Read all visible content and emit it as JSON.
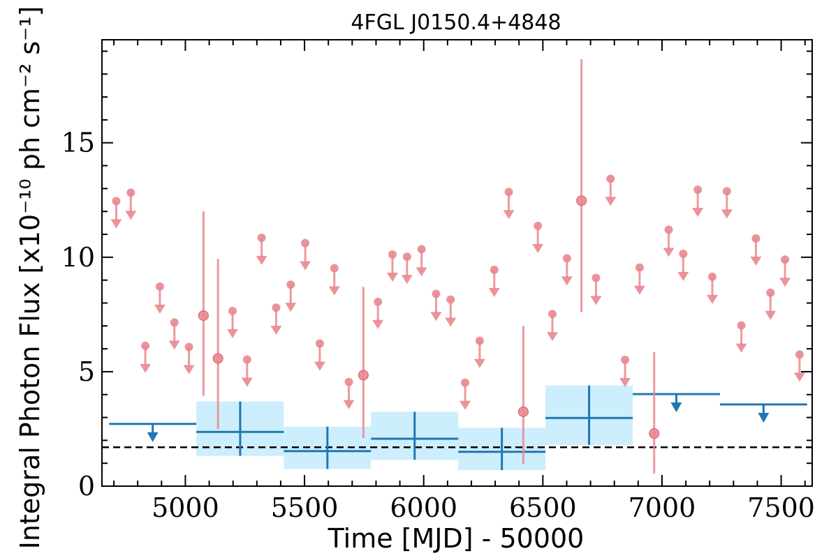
{
  "chart_data": {
    "type": "scatter",
    "title": "4FGL J0150.4+4848",
    "xlabel": "Time [MJD] - 50000",
    "ylabel": "Integral Photon Flux [x10⁻¹⁰ ph cm⁻² s⁻¹]",
    "xlim": [
      4650,
      7630
    ],
    "ylim": [
      0,
      19.5
    ],
    "xticks": [
      5000,
      5500,
      6000,
      6500,
      7000,
      7500
    ],
    "xtick_labels": [
      "5000",
      "5500",
      "6000",
      "6500",
      "7000",
      "7500"
    ],
    "yticks": [
      0,
      5,
      10,
      15
    ],
    "ytick_labels": [
      "0",
      "5",
      "10",
      "15"
    ],
    "grid": false,
    "legend": "none",
    "colors": {
      "short_bins": "#e8888e",
      "long_bins": "#1f77b4",
      "long_band": "#cdeefc",
      "reference_line": "#000000"
    },
    "reference_line": {
      "y": 1.7,
      "style": "dashed"
    },
    "series": [
      {
        "role": "short-bins",
        "detections": [
          {
            "x": 5076,
            "y": 7.45,
            "ylow": 3.95,
            "yhigh": 12.0
          },
          {
            "x": 5137,
            "y": 5.58,
            "ylow": 2.5,
            "yhigh": 9.92
          },
          {
            "x": 5747,
            "y": 4.85,
            "ylow": 2.1,
            "yhigh": 8.7
          },
          {
            "x": 6418,
            "y": 3.25,
            "ylow": 0.98,
            "yhigh": 7.0
          },
          {
            "x": 6662,
            "y": 12.47,
            "ylow": 7.6,
            "yhigh": 18.65
          },
          {
            "x": 6967,
            "y": 2.3,
            "ylow": 0.55,
            "yhigh": 5.85
          }
        ],
        "upper_limits": [
          {
            "x": 4710,
            "y": 12.45
          },
          {
            "x": 4771,
            "y": 12.82
          },
          {
            "x": 4832,
            "y": 6.13
          },
          {
            "x": 4893,
            "y": 8.72
          },
          {
            "x": 4954,
            "y": 7.15
          },
          {
            "x": 5015,
            "y": 6.08
          },
          {
            "x": 5198,
            "y": 7.65
          },
          {
            "x": 5259,
            "y": 5.53
          },
          {
            "x": 5320,
            "y": 10.85
          },
          {
            "x": 5381,
            "y": 7.8
          },
          {
            "x": 5442,
            "y": 8.8
          },
          {
            "x": 5503,
            "y": 10.62
          },
          {
            "x": 5564,
            "y": 6.23
          },
          {
            "x": 5625,
            "y": 9.52
          },
          {
            "x": 5686,
            "y": 4.55
          },
          {
            "x": 5808,
            "y": 8.05
          },
          {
            "x": 5869,
            "y": 10.12
          },
          {
            "x": 5930,
            "y": 10.02
          },
          {
            "x": 5991,
            "y": 10.35
          },
          {
            "x": 6052,
            "y": 8.4
          },
          {
            "x": 6113,
            "y": 8.15
          },
          {
            "x": 6174,
            "y": 4.52
          },
          {
            "x": 6235,
            "y": 6.35
          },
          {
            "x": 6296,
            "y": 9.45
          },
          {
            "x": 6357,
            "y": 12.85
          },
          {
            "x": 6479,
            "y": 11.37
          },
          {
            "x": 6540,
            "y": 7.52
          },
          {
            "x": 6601,
            "y": 9.95
          },
          {
            "x": 6723,
            "y": 9.1
          },
          {
            "x": 6784,
            "y": 13.43
          },
          {
            "x": 6845,
            "y": 5.52
          },
          {
            "x": 6906,
            "y": 9.55
          },
          {
            "x": 7028,
            "y": 11.2
          },
          {
            "x": 7089,
            "y": 10.15
          },
          {
            "x": 7150,
            "y": 12.95
          },
          {
            "x": 7211,
            "y": 9.15
          },
          {
            "x": 7272,
            "y": 12.88
          },
          {
            "x": 7333,
            "y": 7.02
          },
          {
            "x": 7394,
            "y": 10.82
          },
          {
            "x": 7455,
            "y": 8.45
          },
          {
            "x": 7516,
            "y": 9.9
          },
          {
            "x": 7577,
            "y": 5.75
          }
        ]
      },
      {
        "role": "long-bins",
        "detections": [
          {
            "x": 5230,
            "xmin": 5046,
            "xmax": 5413,
            "y": 2.37,
            "ylow": 1.32,
            "yhigh": 3.7
          },
          {
            "x": 5596,
            "xmin": 5413,
            "xmax": 5779,
            "y": 1.53,
            "ylow": 0.75,
            "yhigh": 2.6
          },
          {
            "x": 5962,
            "xmin": 5779,
            "xmax": 6145,
            "y": 2.07,
            "ylow": 1.15,
            "yhigh": 3.25
          },
          {
            "x": 6328,
            "xmin": 6145,
            "xmax": 6511,
            "y": 1.5,
            "ylow": 0.7,
            "yhigh": 2.55
          },
          {
            "x": 6694,
            "xmin": 6511,
            "xmax": 6877,
            "y": 2.98,
            "ylow": 1.8,
            "yhigh": 4.4
          }
        ],
        "upper_limits": [
          {
            "x": 4863,
            "xmin": 4680,
            "xmax": 5046,
            "y": 2.72
          },
          {
            "x": 7060,
            "xmin": 6877,
            "xmax": 7243,
            "y": 4.02
          },
          {
            "x": 7426,
            "xmin": 7243,
            "xmax": 7609,
            "y": 3.57
          }
        ]
      }
    ]
  }
}
